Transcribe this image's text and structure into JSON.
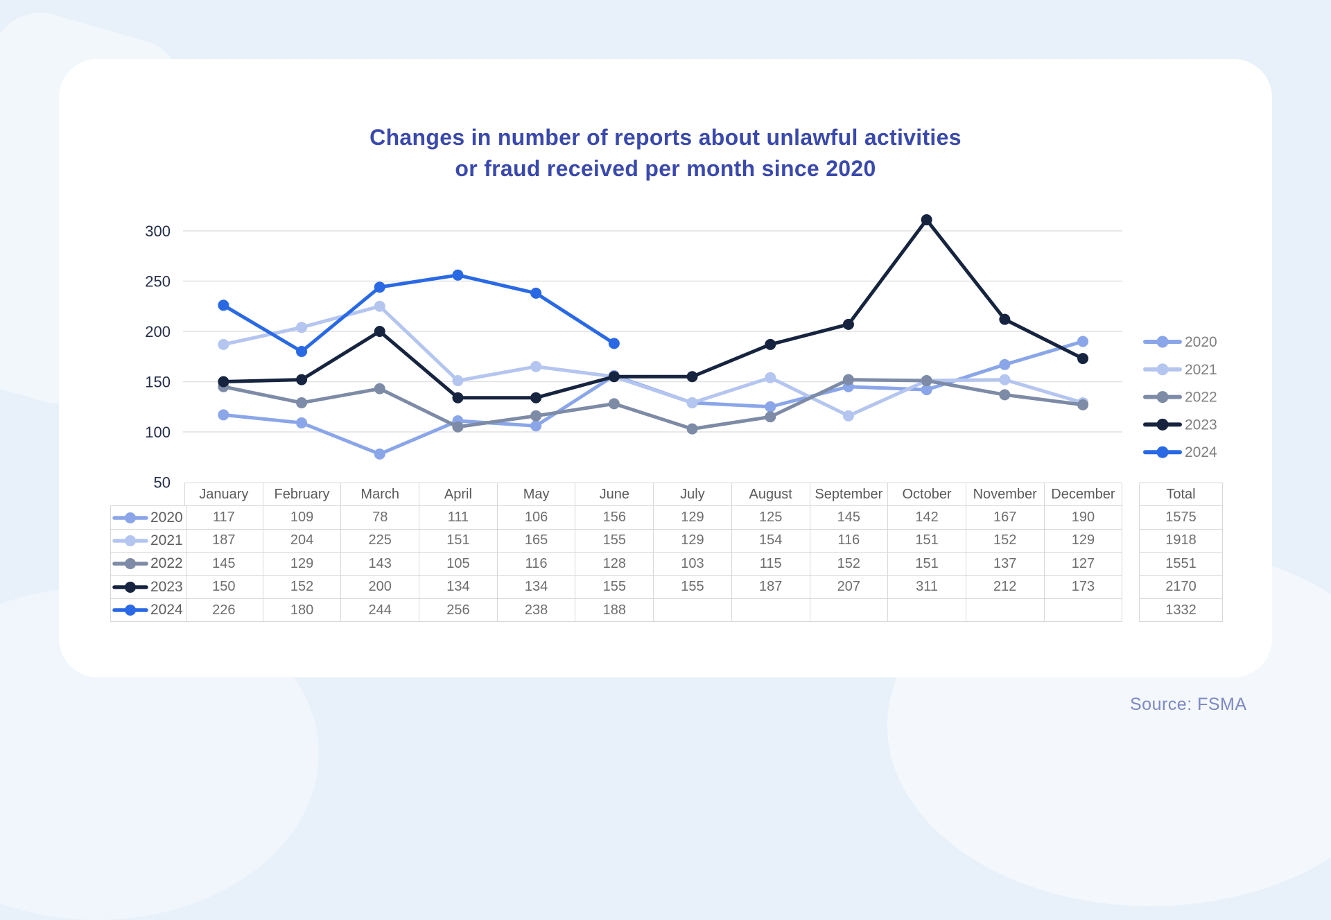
{
  "title": {
    "line1": "Changes in number of reports about unlawful activities",
    "line2": "or fraud received per month since 2020"
  },
  "source": "Source: FSMA",
  "colors": {
    "background": "#E8F1FA",
    "card": "#FFFFFF",
    "title": "#3A49AB",
    "axis_label": "#232C47",
    "grid": "#E1E1E1",
    "table_border": "#D8D8D8",
    "legend_text": "#7F7F7F",
    "source_text": "#7C88C1",
    "series_2020": "#8AA6E9",
    "series_2021": "#B4C5EF",
    "series_2022": "#7D8BA6",
    "series_2023": "#16243F",
    "series_2024": "#2A69E4"
  },
  "chart_data": {
    "type": "line",
    "title": "Changes in number of reports about unlawful activities or fraud received per month since 2020",
    "xlabel": "",
    "ylabel": "",
    "categories": [
      "January",
      "February",
      "March",
      "April",
      "May",
      "June",
      "July",
      "August",
      "September",
      "October",
      "November",
      "December"
    ],
    "series": [
      {
        "name": "2020",
        "color": "#8AA6E9",
        "values": [
          117,
          109,
          78,
          111,
          106,
          156,
          129,
          125,
          145,
          142,
          167,
          190
        ],
        "total": 1575
      },
      {
        "name": "2021",
        "color": "#B4C5EF",
        "values": [
          187,
          204,
          225,
          151,
          165,
          155,
          129,
          154,
          116,
          151,
          152,
          129
        ],
        "total": 1918
      },
      {
        "name": "2022",
        "color": "#7D8BA6",
        "values": [
          145,
          129,
          143,
          105,
          116,
          128,
          103,
          115,
          152,
          151,
          137,
          127
        ],
        "total": 1551
      },
      {
        "name": "2023",
        "color": "#16243F",
        "values": [
          150,
          152,
          200,
          134,
          134,
          155,
          155,
          187,
          207,
          311,
          212,
          173
        ],
        "total": 2170
      },
      {
        "name": "2024",
        "color": "#2A69E4",
        "values": [
          226,
          180,
          244,
          256,
          238,
          188,
          null,
          null,
          null,
          null,
          null,
          null
        ],
        "total": 1332
      }
    ],
    "ylim": [
      50,
      300
    ],
    "yticks": [
      50,
      100,
      150,
      200,
      250,
      300
    ],
    "grid": true,
    "legend_position": "right"
  },
  "table": {
    "total_header": "Total"
  }
}
